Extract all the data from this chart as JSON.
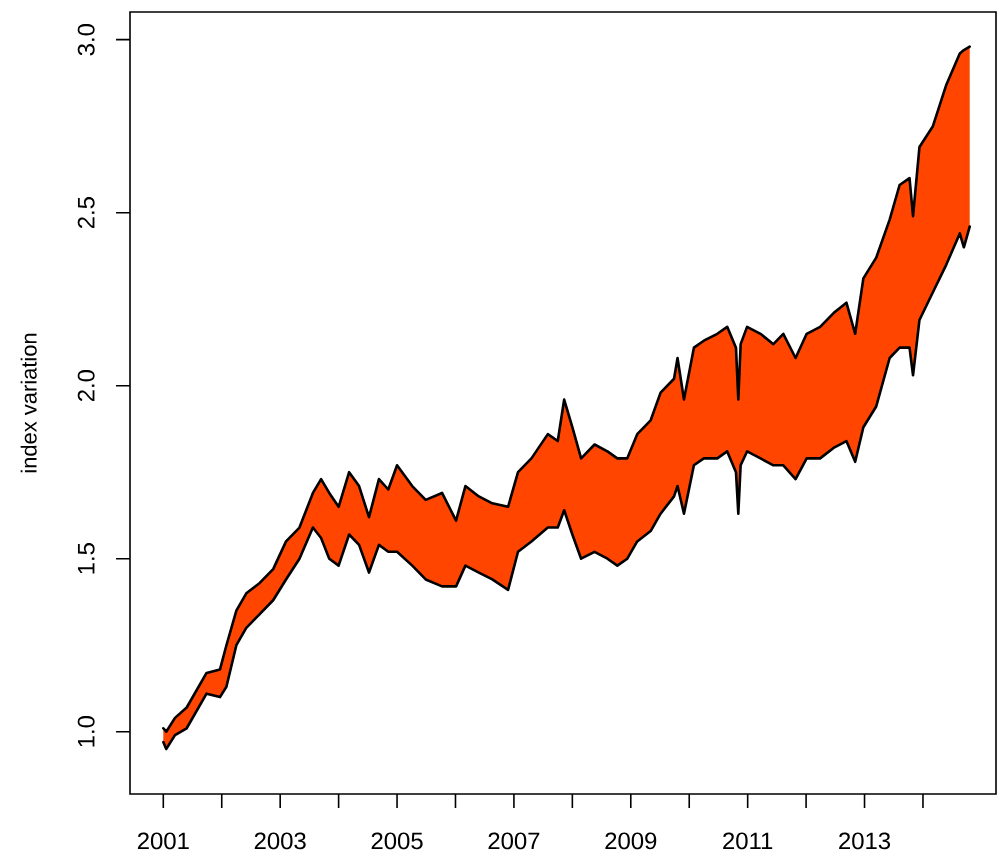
{
  "chart_data": {
    "type": "line",
    "ylabel": "index variation",
    "x": [
      2001.0,
      2001.05,
      2001.2,
      2001.4,
      2001.74,
      2001.97,
      2002.08,
      2002.25,
      2002.42,
      2002.65,
      2002.88,
      2003.1,
      2003.33,
      2003.56,
      2003.7,
      2003.84,
      2004.0,
      2004.18,
      2004.35,
      2004.52,
      2004.69,
      2004.85,
      2005.0,
      2005.26,
      2005.49,
      2005.77,
      2006.01,
      2006.17,
      2006.4,
      2006.63,
      2006.9,
      2007.07,
      2007.3,
      2007.58,
      2007.75,
      2007.86,
      2008.0,
      2008.15,
      2008.38,
      2008.6,
      2008.77,
      2008.94,
      2009.11,
      2009.34,
      2009.51,
      2009.74,
      2009.8,
      2009.91,
      2010.08,
      2010.25,
      2010.48,
      2010.65,
      2010.8,
      2010.84,
      2010.88,
      2010.99,
      2011.22,
      2011.44,
      2011.61,
      2011.82,
      2012.01,
      2012.24,
      2012.47,
      2012.69,
      2012.84,
      2012.98,
      2013.2,
      2013.43,
      2013.6,
      2013.77,
      2013.83,
      2013.94,
      2014.17,
      2014.4,
      2014.63,
      2014.7,
      2014.8
    ],
    "series": [
      {
        "color": "#ff4500",
        "values": [
          null,
          null,
          null,
          null,
          null,
          null,
          null,
          null,
          null,
          null,
          null,
          null,
          null,
          null,
          null,
          null,
          null,
          null,
          null,
          null,
          null,
          null,
          null,
          null,
          null,
          null,
          null,
          null,
          null,
          null,
          null,
          null,
          null,
          null,
          null,
          null,
          null,
          null,
          null,
          null,
          null,
          null,
          null,
          null,
          null,
          null,
          null,
          null,
          null,
          null,
          null,
          null,
          null,
          null,
          null,
          null,
          null,
          null,
          null,
          null,
          null,
          null,
          null,
          null,
          null,
          null,
          null,
          null,
          null,
          null,
          null,
          null,
          null,
          null,
          null,
          null,
          null
        ],
        "upper": [
          1.01,
          1.0,
          1.04,
          1.07,
          1.17,
          1.18,
          1.25,
          1.35,
          1.4,
          1.43,
          1.47,
          1.55,
          1.59,
          1.69,
          1.73,
          1.69,
          1.65,
          1.75,
          1.71,
          1.62,
          1.73,
          1.7,
          1.77,
          1.71,
          1.67,
          1.69,
          1.61,
          1.71,
          1.68,
          1.66,
          1.65,
          1.75,
          1.79,
          1.86,
          1.84,
          1.96,
          1.88,
          1.79,
          1.83,
          1.81,
          1.79,
          1.79,
          1.86,
          1.9,
          1.98,
          2.02,
          2.08,
          1.96,
          2.11,
          2.13,
          2.15,
          2.17,
          2.11,
          1.96,
          2.12,
          2.17,
          2.15,
          2.12,
          2.15,
          2.08,
          2.15,
          2.17,
          2.21,
          2.24,
          2.15,
          2.31,
          2.37,
          2.48,
          2.58,
          2.6,
          2.49,
          2.69,
          2.75,
          2.87,
          2.96,
          2.97,
          2.98
        ],
        "lower": [
          0.97,
          0.95,
          0.99,
          1.01,
          1.11,
          1.1,
          1.13,
          1.25,
          1.3,
          1.34,
          1.38,
          1.44,
          1.5,
          1.59,
          1.56,
          1.5,
          1.48,
          1.57,
          1.54,
          1.46,
          1.54,
          1.52,
          1.52,
          1.48,
          1.44,
          1.42,
          1.42,
          1.48,
          1.46,
          1.44,
          1.41,
          1.52,
          1.55,
          1.59,
          1.59,
          1.64,
          1.57,
          1.5,
          1.52,
          1.5,
          1.48,
          1.5,
          1.55,
          1.58,
          1.63,
          1.68,
          1.71,
          1.63,
          1.77,
          1.79,
          1.79,
          1.81,
          1.75,
          1.63,
          1.77,
          1.81,
          1.79,
          1.77,
          1.77,
          1.73,
          1.79,
          1.79,
          1.82,
          1.84,
          1.78,
          1.88,
          1.94,
          2.08,
          2.11,
          2.11,
          2.03,
          2.19,
          2.27,
          2.35,
          2.44,
          2.4,
          2.46
        ]
      },
      {
        "color": "#000000",
        "values": [
          1.01,
          1.0,
          1.04,
          1.07,
          1.17,
          1.18,
          1.25,
          1.35,
          1.4,
          1.43,
          1.47,
          1.55,
          1.59,
          1.69,
          1.73,
          1.69,
          1.65,
          1.75,
          1.71,
          1.62,
          1.73,
          1.7,
          1.77,
          1.71,
          1.67,
          1.69,
          1.61,
          1.71,
          1.68,
          1.66,
          1.65,
          1.75,
          1.79,
          1.86,
          1.84,
          1.96,
          1.88,
          1.79,
          1.83,
          1.81,
          1.79,
          1.79,
          1.86,
          1.9,
          1.98,
          2.02,
          2.08,
          1.96,
          2.11,
          2.13,
          2.15,
          2.17,
          2.11,
          1.96,
          2.12,
          2.17,
          2.15,
          2.12,
          2.15,
          2.08,
          2.15,
          2.17,
          2.21,
          2.24,
          2.15,
          2.31,
          2.37,
          2.48,
          2.58,
          2.6,
          2.49,
          2.69,
          2.75,
          2.87,
          2.96,
          2.97,
          2.98
        ]
      },
      {
        "color": "#000000",
        "values": [
          0.97,
          0.95,
          0.99,
          1.01,
          1.11,
          1.1,
          1.13,
          1.25,
          1.3,
          1.34,
          1.38,
          1.44,
          1.5,
          1.59,
          1.56,
          1.5,
          1.48,
          1.57,
          1.54,
          1.46,
          1.54,
          1.52,
          1.52,
          1.48,
          1.44,
          1.42,
          1.42,
          1.48,
          1.46,
          1.44,
          1.41,
          1.52,
          1.55,
          1.59,
          1.59,
          1.64,
          1.57,
          1.5,
          1.52,
          1.5,
          1.48,
          1.5,
          1.55,
          1.58,
          1.63,
          1.68,
          1.71,
          1.63,
          1.77,
          1.79,
          1.79,
          1.81,
          1.75,
          1.63,
          1.77,
          1.81,
          1.79,
          1.77,
          1.77,
          1.73,
          1.79,
          1.79,
          1.82,
          1.84,
          1.78,
          1.88,
          1.94,
          2.08,
          2.11,
          2.11,
          2.03,
          2.19,
          2.27,
          2.35,
          2.44,
          2.4,
          2.46
        ]
      }
    ],
    "xlim": [
      2000.43,
      2015.25
    ],
    "ylim": [
      0.82,
      3.08
    ],
    "xticks": [
      2001,
      {
        "value": 2002,
        "label": null
      },
      2003,
      {
        "value": 2004,
        "label": null
      },
      2005,
      {
        "value": 2006,
        "label": null
      },
      2007,
      {
        "value": 2008,
        "label": null
      },
      2009,
      {
        "value": 2010,
        "label": null
      },
      2011,
      {
        "value": 2012,
        "label": null
      },
      2013,
      {
        "value": 2014,
        "label": null
      }
    ],
    "yticks": [
      {
        "value": 1,
        "label": "1.0"
      },
      1.5,
      {
        "value": 2,
        "label": "2.0"
      },
      2.5,
      {
        "value": 3,
        "label": "3.0"
      }
    ]
  }
}
